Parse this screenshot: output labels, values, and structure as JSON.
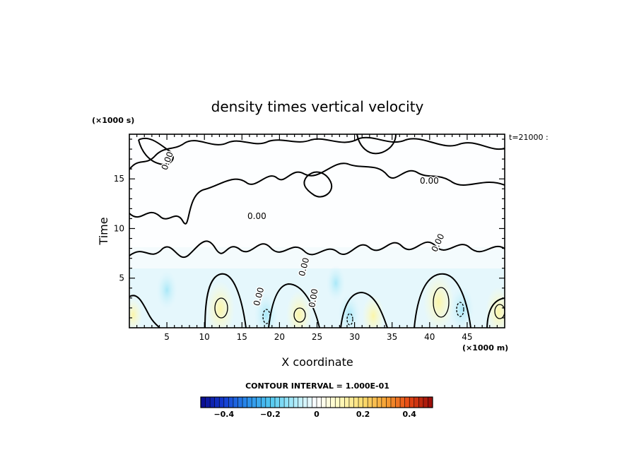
{
  "chart_data": {
    "type": "heatmap",
    "title": "density times vertical velocity",
    "xlabel": "X coordinate",
    "ylabel": "Time",
    "x_unit": "(×1000 m)",
    "y_unit": "(×1000 s)",
    "xlim": [
      0,
      50
    ],
    "ylim": [
      0,
      19.5
    ],
    "x_ticks": [
      5,
      10,
      15,
      20,
      25,
      30,
      35,
      40,
      45
    ],
    "y_ticks": [
      5,
      10,
      15
    ],
    "time_stamp": "t=21000 :",
    "contour_label": "0.00",
    "contour_interval_text": "CONTOUR INTERVAL = 1.000E-01",
    "colorbar": {
      "min": -0.5,
      "max": 0.5,
      "tick_values": [
        -0.4,
        -0.2,
        0,
        0.2,
        0.4
      ],
      "tick_labels": [
        "−0.4",
        "−0.2",
        "0",
        "0.2",
        "0.4"
      ]
    },
    "features": [
      {
        "kind": "positive",
        "x": 12.1,
        "y": 1.9,
        "value": 0.18
      },
      {
        "kind": "positive",
        "x": 22.6,
        "y": 1.3,
        "value": 0.14
      },
      {
        "kind": "positive",
        "x": 32.5,
        "y": 1.2,
        "value": 0.1
      },
      {
        "kind": "positive",
        "x": 41.2,
        "y": 2.6,
        "value": 0.2
      },
      {
        "kind": "positive",
        "x": 49.2,
        "y": 1.6,
        "value": 0.15
      },
      {
        "kind": "positive",
        "x": 0.5,
        "y": 1.3,
        "value": 0.05
      },
      {
        "kind": "negative",
        "x": 18.2,
        "y": 1.3,
        "value": -0.12
      },
      {
        "kind": "negative",
        "x": 29.3,
        "y": 1.3,
        "value": -0.1
      },
      {
        "kind": "negative",
        "x": 44.3,
        "y": 1.9,
        "value": -0.12
      },
      {
        "kind": "negative",
        "x": 5.0,
        "y": 3.8,
        "value": -0.08
      },
      {
        "kind": "negative",
        "x": 27.5,
        "y": 4.5,
        "value": -0.06
      }
    ]
  }
}
